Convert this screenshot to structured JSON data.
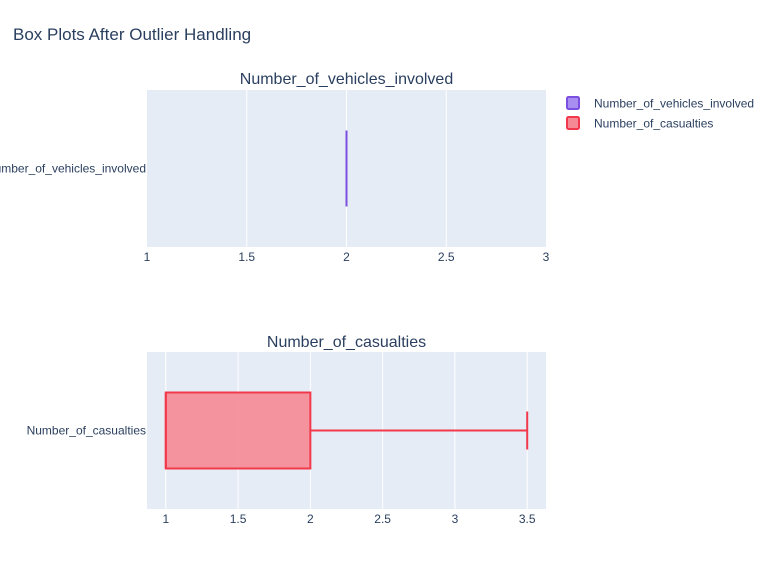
{
  "title": "Box Plots After Outlier Handling",
  "colors": {
    "plot_bg": "#e5ecf6",
    "grid": "#ffffff",
    "text": "#2a3f5f"
  },
  "legend": {
    "position": "top-right",
    "items": [
      {
        "label": "Number_of_vehicles_involved",
        "color": "#7b4fe0",
        "fill": "#a88ef0"
      },
      {
        "label": "Number_of_casualties",
        "color": "#f2394c",
        "fill": "#f58a94"
      }
    ]
  },
  "chart_data": [
    {
      "type": "box",
      "orientation": "horizontal",
      "title": "Number_of_vehicles_involved",
      "category": "Number_of_vehicles_involved",
      "xlim": [
        1,
        3
      ],
      "xticks": [
        1,
        1.5,
        2,
        2.5,
        3
      ],
      "xtick_labels": [
        "1",
        "1.5",
        "2",
        "2.5",
        "3"
      ],
      "grid": true,
      "min": 2,
      "q1": 2,
      "median": 2,
      "q3": 2,
      "max": 2,
      "color": "#7b4fe0",
      "fill": "#a88ef0"
    },
    {
      "type": "box",
      "orientation": "horizontal",
      "title": "Number_of_casualties",
      "category": "Number_of_casualties",
      "xlim": [
        0.87,
        3.63
      ],
      "xticks": [
        1,
        1.5,
        2,
        2.5,
        3,
        3.5
      ],
      "xtick_labels": [
        "1",
        "1.5",
        "2",
        "2.5",
        "3",
        "3.5"
      ],
      "grid": true,
      "min": 1,
      "q1": 1,
      "median": 1,
      "q3": 2,
      "max": 3.5,
      "color": "#f2394c",
      "fill": "#f58a94"
    }
  ]
}
